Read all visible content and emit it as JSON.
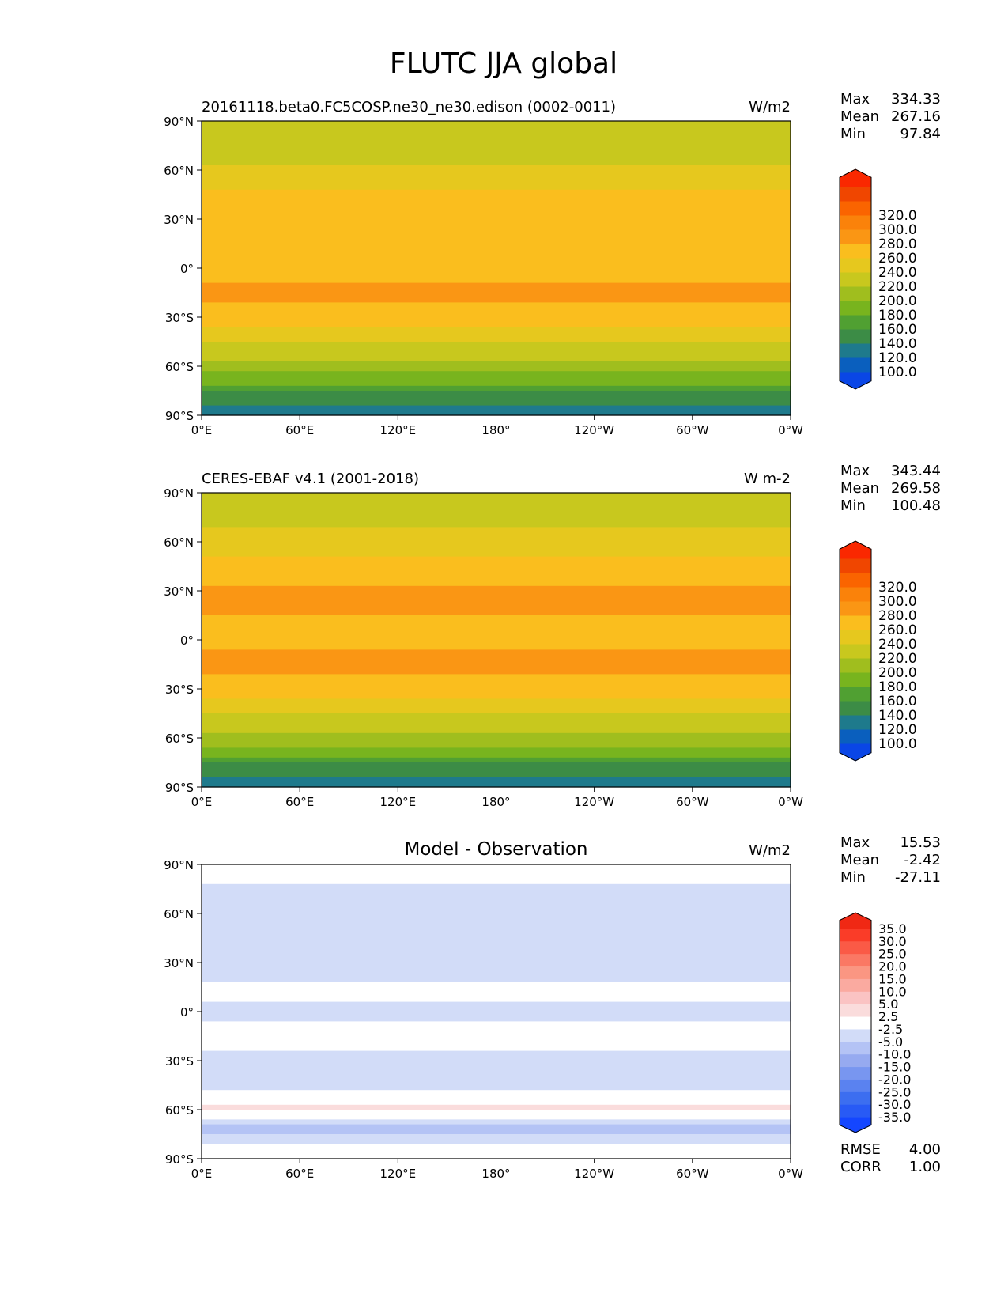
{
  "title": "FLUTC JJA global",
  "panels": [
    {
      "title_left": "20161118.beta0.FC5COSP.ne30_ne30.edison (0002-0011)",
      "title_center": "",
      "units": "W/m2",
      "stats": [
        {
          "label": "Max",
          "value": "334.33"
        },
        {
          "label": "Mean",
          "value": "267.16"
        },
        {
          "label": "Min",
          "value": "97.84"
        }
      ],
      "extra_stats": [],
      "colorbar": {
        "ticks": [
          "100.0",
          "120.0",
          "140.0",
          "160.0",
          "180.0",
          "200.0",
          "220.0",
          "240.0",
          "260.0",
          "280.0",
          "300.0",
          "320.0"
        ],
        "colors": [
          "#0a46e6",
          "#0a5fbe",
          "#1e7a8c",
          "#3c8c46",
          "#50a032",
          "#78b41e",
          "#a0be1e",
          "#c8c81e",
          "#e6c81e",
          "#fabe1e",
          "#fa9614",
          "#fa820a",
          "#fa6400",
          "#f04600",
          "#fa2800"
        ]
      }
    },
    {
      "title_left": "CERES-EBAF v4.1 (2001-2018)",
      "title_center": "",
      "units": "W m-2",
      "stats": [
        {
          "label": "Max",
          "value": "343.44"
        },
        {
          "label": "Mean",
          "value": "269.58"
        },
        {
          "label": "Min",
          "value": "100.48"
        }
      ],
      "extra_stats": [],
      "colorbar": {
        "ticks": [
          "100.0",
          "120.0",
          "140.0",
          "160.0",
          "180.0",
          "200.0",
          "220.0",
          "240.0",
          "260.0",
          "280.0",
          "300.0",
          "320.0"
        ],
        "colors": [
          "#0a46e6",
          "#0a5fbe",
          "#1e7a8c",
          "#3c8c46",
          "#50a032",
          "#78b41e",
          "#a0be1e",
          "#c8c81e",
          "#e6c81e",
          "#fabe1e",
          "#fa9614",
          "#fa820a",
          "#fa6400",
          "#f04600",
          "#fa2800"
        ]
      }
    },
    {
      "title_left": "",
      "title_center": "Model - Observation",
      "units": "W/m2",
      "stats": [
        {
          "label": "Max",
          "value": "15.53"
        },
        {
          "label": "Mean",
          "value": "-2.42"
        },
        {
          "label": "Min",
          "value": "-27.11"
        }
      ],
      "extra_stats": [
        {
          "label": "RMSE",
          "value": "4.00"
        },
        {
          "label": "CORR",
          "value": "1.00"
        }
      ],
      "colorbar": {
        "ticks": [
          "-35.0",
          "-30.0",
          "-25.0",
          "-20.0",
          "-15.0",
          "-10.0",
          "-5.0",
          "-2.5",
          "2.5",
          "5.0",
          "10.0",
          "15.0",
          "20.0",
          "25.0",
          "30.0",
          "35.0"
        ],
        "colors": [
          "#1446ff",
          "#285af5",
          "#3c6ef0",
          "#5a82f0",
          "#7896f0",
          "#96aaf0",
          "#b4c3f5",
          "#d2dcf8",
          "#ffffff",
          "#fadcdc",
          "#fac3c3",
          "#faaaa0",
          "#fa9682",
          "#fa7864",
          "#fa5a46",
          "#fa3c28",
          "#f02814"
        ]
      }
    }
  ],
  "x_ticks": [
    "0°E",
    "60°E",
    "120°E",
    "180°",
    "120°W",
    "60°W",
    "0°W"
  ],
  "y_ticks": [
    "90°N",
    "60°N",
    "30°N",
    "0°",
    "30°S",
    "60°S",
    "90°S"
  ],
  "chart_data": [
    {
      "type": "heatmap",
      "title": "20161118.beta0.FC5COSP.ne30_ne30.edison (0002-0011)",
      "units": "W/m2",
      "x_range": [
        0,
        360
      ],
      "y_range": [
        -90,
        90
      ],
      "zonal_profile": [
        {
          "lat": 90,
          "value": 225
        },
        {
          "lat": 75,
          "value": 228
        },
        {
          "lat": 60,
          "value": 245
        },
        {
          "lat": 45,
          "value": 262
        },
        {
          "lat": 30,
          "value": 280
        },
        {
          "lat": 15,
          "value": 278
        },
        {
          "lat": 0,
          "value": 272
        },
        {
          "lat": -15,
          "value": 285
        },
        {
          "lat": -30,
          "value": 270
        },
        {
          "lat": -45,
          "value": 240
        },
        {
          "lat": -55,
          "value": 222
        },
        {
          "lat": -62,
          "value": 205
        },
        {
          "lat": -70,
          "value": 185
        },
        {
          "lat": -78,
          "value": 150
        },
        {
          "lat": -90,
          "value": 125
        }
      ],
      "stats": {
        "max": 334.33,
        "mean": 267.16,
        "min": 97.84
      }
    },
    {
      "type": "heatmap",
      "title": "CERES-EBAF v4.1 (2001-2018)",
      "units": "W m-2",
      "x_range": [
        0,
        360
      ],
      "y_range": [
        -90,
        90
      ],
      "zonal_profile": [
        {
          "lat": 90,
          "value": 225
        },
        {
          "lat": 75,
          "value": 230
        },
        {
          "lat": 60,
          "value": 250
        },
        {
          "lat": 45,
          "value": 265
        },
        {
          "lat": 30,
          "value": 283
        },
        {
          "lat": 15,
          "value": 280
        },
        {
          "lat": 0,
          "value": 275
        },
        {
          "lat": -15,
          "value": 287
        },
        {
          "lat": -30,
          "value": 272
        },
        {
          "lat": -45,
          "value": 242
        },
        {
          "lat": -55,
          "value": 224
        },
        {
          "lat": -62,
          "value": 207
        },
        {
          "lat": -70,
          "value": 188
        },
        {
          "lat": -78,
          "value": 150
        },
        {
          "lat": -90,
          "value": 125
        }
      ],
      "stats": {
        "max": 343.44,
        "mean": 269.58,
        "min": 100.48
      }
    },
    {
      "type": "heatmap",
      "title": "Model - Observation",
      "units": "W/m2",
      "x_range": [
        0,
        360
      ],
      "y_range": [
        -90,
        90
      ],
      "zonal_profile": [
        {
          "lat": 90,
          "value": 0
        },
        {
          "lat": 75,
          "value": -3
        },
        {
          "lat": 60,
          "value": -5
        },
        {
          "lat": 45,
          "value": -3
        },
        {
          "lat": 30,
          "value": -4
        },
        {
          "lat": 15,
          "value": -2
        },
        {
          "lat": 0,
          "value": -3
        },
        {
          "lat": -15,
          "value": -2
        },
        {
          "lat": -30,
          "value": -3
        },
        {
          "lat": -45,
          "value": -4
        },
        {
          "lat": -58,
          "value": 3
        },
        {
          "lat": -66,
          "value": -3
        },
        {
          "lat": -72,
          "value": -7
        },
        {
          "lat": -80,
          "value": -3
        },
        {
          "lat": -90,
          "value": 0
        }
      ],
      "stats": {
        "max": 15.53,
        "mean": -2.42,
        "min": -27.11,
        "rmse": 4.0,
        "corr": 1.0
      }
    }
  ]
}
